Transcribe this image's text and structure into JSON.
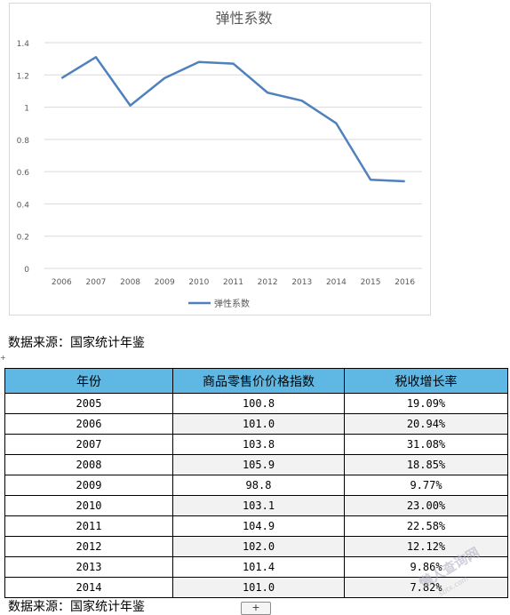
{
  "chart_data": {
    "type": "line",
    "title": "弹性系数",
    "x": [
      "2006",
      "2007",
      "2008",
      "2009",
      "2010",
      "2011",
      "2012",
      "2013",
      "2014",
      "2015",
      "2016"
    ],
    "series": [
      {
        "name": "弹性系数",
        "values": [
          1.18,
          1.31,
          1.01,
          1.18,
          1.28,
          1.27,
          1.09,
          1.04,
          0.9,
          0.55,
          0.54
        ]
      }
    ],
    "ylim": [
      0,
      1.4
    ],
    "yticks": [
      "0",
      "0.2",
      "0.4",
      "0.6",
      "0.8",
      "1",
      "1.2",
      "1.4"
    ],
    "grid": true,
    "legend": "bottom",
    "line_color": "#4f81bd"
  },
  "source_note_top": "数据来源：国家统计年鉴",
  "table": {
    "headers": [
      "年份",
      "商品零售价价格指数",
      "税收增长率"
    ],
    "rows": [
      [
        "2005",
        "100.8",
        "19.09%"
      ],
      [
        "2006",
        "101.0",
        "20.94%"
      ],
      [
        "2007",
        "103.8",
        "31.08%"
      ],
      [
        "2008",
        "105.9",
        "18.85%"
      ],
      [
        "2009",
        "98.8",
        "9.77%"
      ],
      [
        "2010",
        "103.1",
        "23.00%"
      ],
      [
        "2011",
        "104.9",
        "22.58%"
      ],
      [
        "2012",
        "102.0",
        "12.12%"
      ],
      [
        "2013",
        "101.4",
        "9.86%"
      ],
      [
        "2014",
        "101.0",
        "7.82%"
      ]
    ],
    "header_color": "#5fb8e4"
  },
  "source_note_bottom": "数据来源：国家统计年鉴",
  "add_button_label": "+",
  "watermark_text": "懒人查询网",
  "watermark_url": "sbtx.com"
}
